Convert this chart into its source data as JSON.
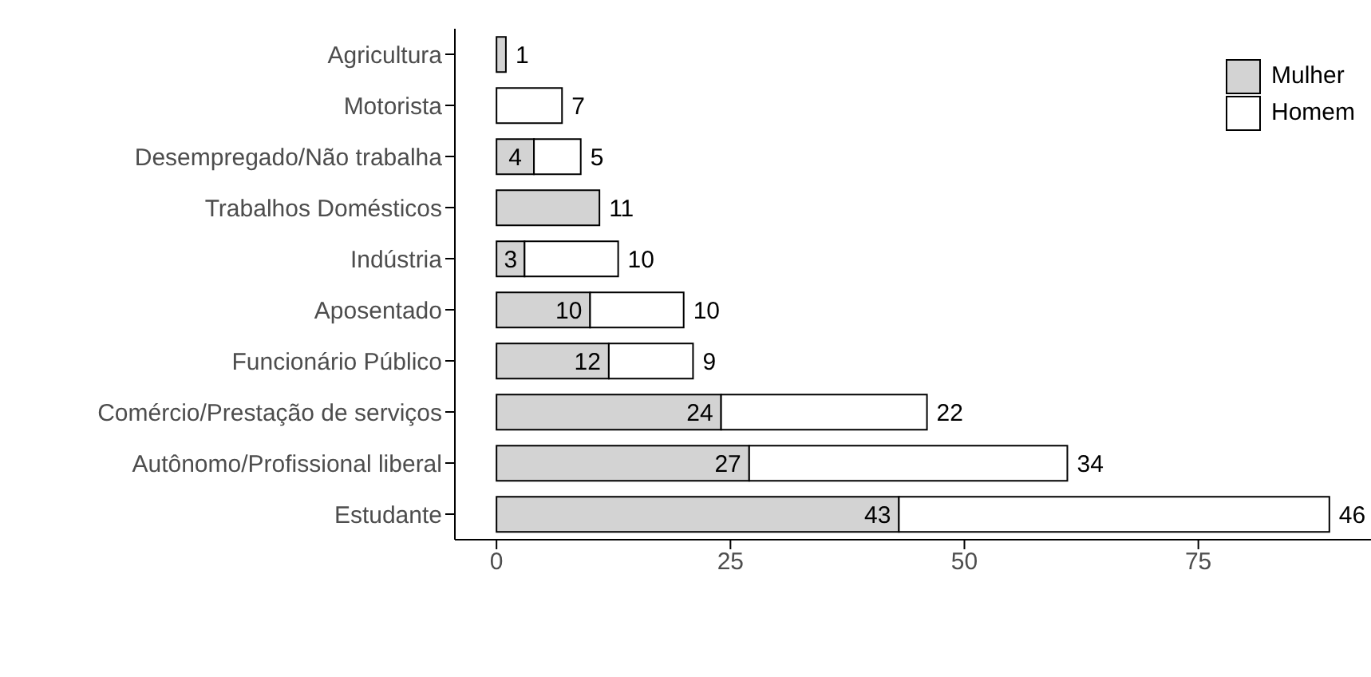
{
  "chart_data": {
    "type": "bar",
    "orientation": "horizontal",
    "stacked": true,
    "data_labels": true,
    "grid": false,
    "legend": "top right",
    "categories": [
      "Agricultura",
      "Motorista",
      "Desempregado/Não trabalha",
      "Trabalhos Domésticos",
      "Indústria",
      "Aposentado",
      "Funcionário Público",
      "Comércio/Prestação de serviços",
      "Autônomo/Profissional liberal",
      "Estudante"
    ],
    "xlim": [
      -4.45,
      93.45
    ],
    "xticks": [
      0,
      25,
      50,
      75
    ],
    "series": [
      {
        "name": "Mulher",
        "color": "#d3d3d3",
        "values": [
          1,
          null,
          4,
          11,
          3,
          10,
          12,
          24,
          27,
          43
        ]
      },
      {
        "name": "Homem",
        "color": "#ffffff",
        "values": [
          null,
          7,
          5,
          null,
          10,
          10,
          9,
          22,
          34,
          46
        ]
      }
    ]
  }
}
